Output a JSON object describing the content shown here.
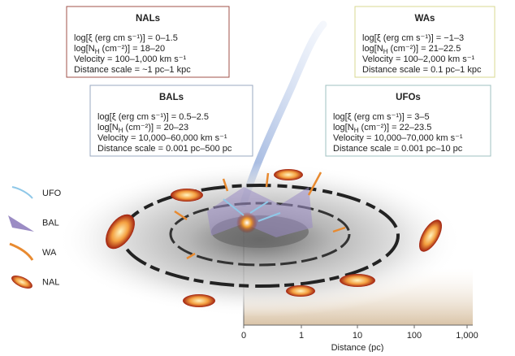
{
  "boxes": [
    {
      "title": "NALs",
      "ionization": "log[ξ (erg cm s⁻¹)] = 0–1.5",
      "column": [
        "log[N",
        "H",
        " (cm⁻²)] = 18–20"
      ],
      "velocity": "Velocity = 100–1,000 km s⁻¹",
      "distance": "Distance scale = ~1 pc–1 kpc"
    },
    {
      "title": "WAs",
      "ionization": "log[ξ (erg cm s⁻¹)] = −1–3",
      "column": [
        "log[N",
        "H",
        " (cm⁻²)] = 21–22.5"
      ],
      "velocity": "Velocity = 100–2,000 km s⁻¹",
      "distance": "Distance scale = 0.1 pc–1 kpc"
    },
    {
      "title": "BALs",
      "ionization": "log[ξ (erg cm s⁻¹)] = 0.5–2.5",
      "column": [
        "log[N",
        "H",
        " (cm⁻²)] = 20–23"
      ],
      "velocity": "Velocity = 10,000–60,000 km s⁻¹",
      "distance": "Distance scale = 0.001 pc–500 pc"
    },
    {
      "title": "UFOs",
      "ionization": "log[ξ (erg cm s⁻¹)] = 3–5",
      "column": [
        "log[N",
        "H",
        " (cm⁻²)] = 22–23.5"
      ],
      "velocity": "Velocity = 10,000–70,000 km s⁻¹",
      "distance": "Distance scale = 0.001 pc–10 pc"
    }
  ],
  "legend": [
    "UFO",
    "BAL",
    "WA",
    "NAL"
  ],
  "axis": {
    "label": "Distance (pc)",
    "ticks": [
      "0",
      "1",
      "10",
      "100",
      "1,000"
    ]
  }
}
